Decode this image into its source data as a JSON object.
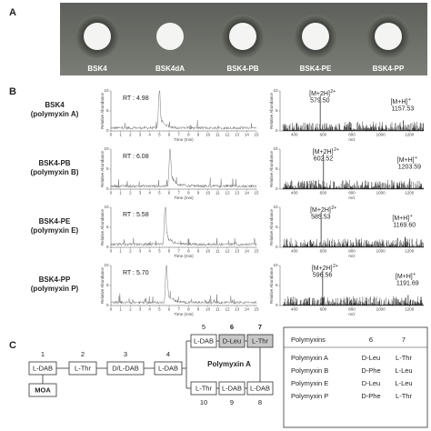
{
  "panel_a": {
    "label": "A",
    "strains": [
      "BSK4",
      "BSK4dA",
      "BSK4-PB",
      "BSK4-PE",
      "BSK4-PP"
    ]
  },
  "panel_b": {
    "label": "B",
    "rt_label": "RT :",
    "chrom": {
      "y_title": "Relative Abundance",
      "x_title": "Time (min)",
      "xlim": [
        0,
        15
      ],
      "xticks": [
        0,
        1,
        2,
        3,
        4,
        5,
        6,
        7,
        8,
        9,
        10,
        11,
        12,
        13,
        14,
        15
      ],
      "ylim": [
        0,
        10
      ],
      "yticks": [
        0,
        5,
        10
      ]
    },
    "ms": {
      "y_title": "Relative Abundance",
      "x_title": "m/z",
      "xlim": [
        300,
        1300
      ],
      "xticks": [
        400,
        600,
        800,
        1000,
        1200
      ],
      "ylim": [
        0,
        10
      ],
      "yticks": [
        0,
        5,
        10
      ]
    },
    "rows": [
      {
        "strain": "BSK4",
        "compound": "(polymyxin A)",
        "rt": 4.98,
        "ions": [
          {
            "label": "[M+2H]",
            "charge": "2+",
            "mz": {
              "value": 579.5,
              "label": "579.50"
            }
          },
          {
            "label": "[M+H]",
            "charge": "+",
            "mz": 1157.53
          }
        ]
      },
      {
        "strain": "BSK4-PB",
        "compound": "(polymyxin B)",
        "rt": 6.08,
        "ions": [
          {
            "label": "[M+2H]",
            "charge": "2+",
            "mz": 602.52
          },
          {
            "label": "[M+H]",
            "charge": "+",
            "mz": 1203.59
          }
        ]
      },
      {
        "strain": "BSK4-PE",
        "compound": "(polymyxin E)",
        "rt": 5.58,
        "ions": [
          {
            "label": "[M+2H]",
            "charge": "2+",
            "mz": 585.53
          },
          {
            "label": "[M+H]",
            "charge": "+",
            "mz": {
              "value": 1169.6,
              "label": "1169.60"
            }
          }
        ]
      },
      {
        "strain": "BSK4-PP",
        "compound": "(polymyxin P)",
        "rt": {
          "value": 5.7,
          "label": "5.70"
        },
        "ions": [
          {
            "label": "[M+2H]",
            "charge": "2+",
            "mz": 596.56
          },
          {
            "label": "[M+H]",
            "charge": "+",
            "mz": 1191.69
          }
        ]
      }
    ]
  },
  "panel_c": {
    "label": "C",
    "title": "Polymyxin A",
    "moa": "MOA",
    "residues": [
      {
        "num": 1,
        "label": "L-DAB"
      },
      {
        "num": 2,
        "label": "L-Thr"
      },
      {
        "num": 3,
        "label": "D/L-DAB"
      },
      {
        "num": 4,
        "label": "L-DAB"
      },
      {
        "num": 5,
        "label": "L-DAB"
      },
      {
        "num": 6,
        "label": "D-Leu"
      },
      {
        "num": 7,
        "label": "L-Thr"
      },
      {
        "num": 8,
        "label": "L-DAB"
      },
      {
        "num": 9,
        "label": "L-DAB"
      },
      {
        "num": 10,
        "label": "L-Thr"
      }
    ],
    "table": {
      "header": [
        "Polymyxins",
        6,
        7
      ],
      "rows": [
        [
          "Polymyxin A",
          "D-Leu",
          "L-Thr"
        ],
        [
          "Polymyxin B",
          "D-Phe",
          "L-Leu"
        ],
        [
          "Polymyxin E",
          "D-Leu",
          "L-Leu"
        ],
        [
          "Polymyxin P",
          "D-Phe",
          "L-Thr"
        ]
      ]
    }
  }
}
